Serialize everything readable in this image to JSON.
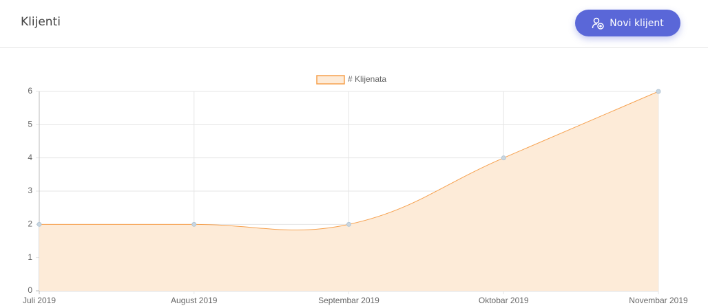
{
  "header": {
    "title": "Klijenti",
    "button": "Novi klijent"
  },
  "chart_data": {
    "type": "line",
    "area": true,
    "categories": [
      "Juli 2019",
      "August 2019",
      "Septembar 2019",
      "Oktobar 2019",
      "Novembar 2019"
    ],
    "series": [
      {
        "name": "# Klijenata",
        "color": "#f6a04d",
        "fill": "#fdebd8",
        "values": [
          2,
          2,
          2,
          4,
          6
        ]
      }
    ],
    "ylim": [
      0,
      6
    ],
    "yticks": [
      0,
      1,
      2,
      3,
      4,
      5,
      6
    ],
    "grid": true,
    "legend": "top"
  }
}
